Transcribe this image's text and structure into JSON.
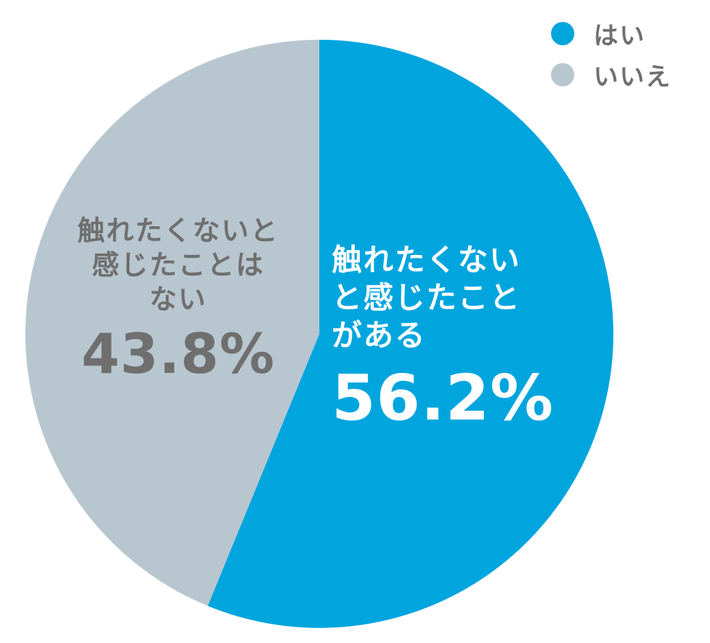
{
  "chart_data": {
    "type": "pie",
    "slices": [
      {
        "label": "触れたくないと感じたことがある",
        "legend": "はい",
        "value": 56.2,
        "value_label": "56.2%",
        "color": "#00a5de"
      },
      {
        "label": "触れたくないと感じたことはない",
        "legend": "いいえ",
        "value": 43.8,
        "value_label": "43.8%",
        "color": "#b8c6cf"
      }
    ],
    "legend_position": "top-right",
    "start_angle": "top (12 o'clock)",
    "direction": "clockwise"
  },
  "labels": {
    "yes_lines": [
      "触れたくない",
      "と感じたこと",
      "がある"
    ],
    "no_lines": [
      "触れたくないと",
      "感じたことは",
      "ない"
    ]
  }
}
